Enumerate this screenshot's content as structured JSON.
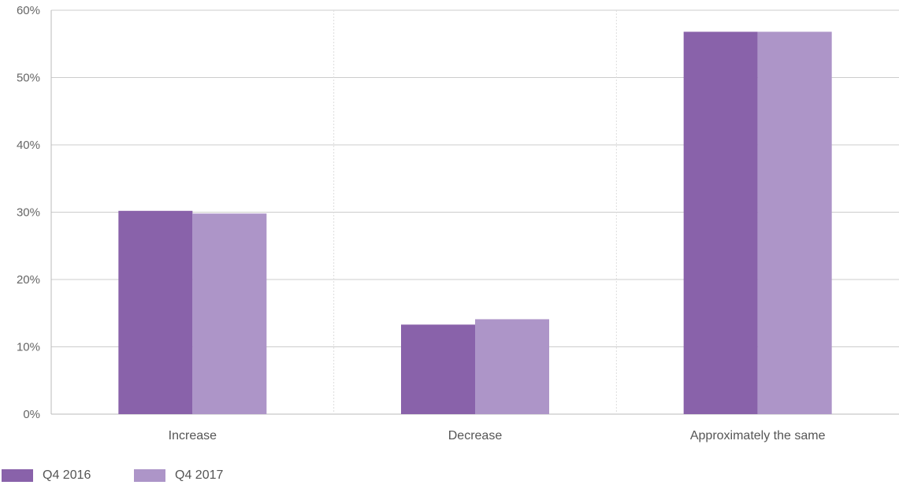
{
  "chart_data": {
    "type": "bar",
    "title": "",
    "xlabel": "",
    "ylabel": "",
    "categories": [
      "Increase",
      "Decrease",
      "Approximately the same"
    ],
    "series": [
      {
        "name": "Q4 2016",
        "color": "#8962aa",
        "values": [
          30.2,
          13.3,
          56.8
        ]
      },
      {
        "name": "Q4 2017",
        "color": "#ad95c8",
        "values": [
          29.8,
          14.1,
          56.8
        ]
      }
    ],
    "ylim": [
      0,
      60
    ],
    "yticks": [
      0,
      10,
      20,
      30,
      40,
      50,
      60
    ],
    "ytick_labels": [
      "0%",
      "10%",
      "20%",
      "30%",
      "40%",
      "50%",
      "60%"
    ],
    "grid": true,
    "legend_position": "bottom-left"
  },
  "colors": {
    "grid": "#cccccc",
    "category_separator": "#dddddd",
    "axis": "#bbbbbb"
  }
}
